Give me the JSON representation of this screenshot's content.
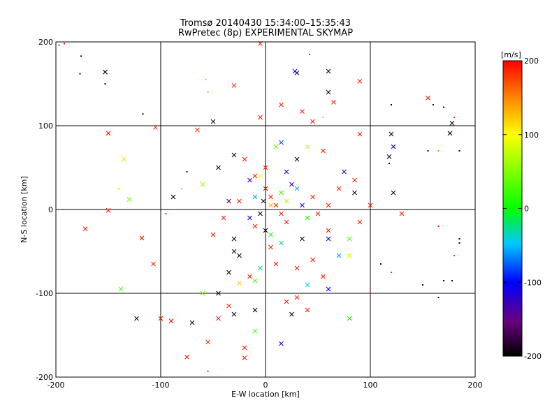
{
  "title_line1": "Tromsø 20140430 15:34:00–15:35:43",
  "title_line2": "RwPretec (8p) EXPERIMENTAL SKYMAP",
  "chart_data": {
    "type": "scatter",
    "xlabel": "E-W location [km]",
    "ylabel": "N-S location [km]",
    "xlim": [
      -200,
      200
    ],
    "ylim": [
      -200,
      200
    ],
    "xticks": [
      -200,
      -100,
      0,
      100,
      200
    ],
    "yticks": [
      -200,
      -100,
      0,
      100,
      200
    ],
    "grid": true,
    "colorbar": {
      "label": "[m/s]",
      "range": [
        -200,
        200
      ],
      "ticks": [
        200,
        100,
        0,
        -100,
        -200
      ],
      "colormap": "rainbow: black(-200) → purple → blue(-100) → cyan → green(0) → yellow(100) → red(200)"
    },
    "marker_styles": {
      "x": "cross (larger)",
      "dot": "small point"
    },
    "points": [
      [
        -197,
        196,
        190,
        "dot"
      ],
      [
        -192,
        198,
        200,
        "dot"
      ],
      [
        -176,
        183,
        -190,
        "dot"
      ],
      [
        -177,
        162,
        -190,
        "dot"
      ],
      [
        -153,
        164,
        -195,
        "x"
      ],
      [
        -153,
        150,
        -190,
        "dot"
      ],
      [
        -57,
        155,
        40,
        "dot"
      ],
      [
        -30,
        148,
        180,
        "x"
      ],
      [
        -5,
        198,
        190,
        "x"
      ],
      [
        -55,
        140,
        30,
        "dot"
      ],
      [
        -117,
        114,
        -190,
        "dot"
      ],
      [
        -150,
        91,
        190,
        "x"
      ],
      [
        -105,
        98,
        180,
        "x"
      ],
      [
        -135,
        60,
        110,
        "x"
      ],
      [
        -140,
        25,
        60,
        "dot"
      ],
      [
        -130,
        12,
        40,
        "x"
      ],
      [
        -150,
        -1,
        190,
        "x"
      ],
      [
        -172,
        -23,
        190,
        "x"
      ],
      [
        -138,
        -95,
        30,
        "x"
      ],
      [
        -118,
        -34,
        190,
        "x"
      ],
      [
        -107,
        -65,
        190,
        "x"
      ],
      [
        -123,
        -130,
        -190,
        "x"
      ],
      [
        -90,
        -133,
        200,
        "x"
      ],
      [
        -100,
        -130,
        190,
        "x"
      ],
      [
        -75,
        -176,
        190,
        "x"
      ],
      [
        -55,
        -158,
        180,
        "x"
      ],
      [
        -55,
        -193,
        190,
        "dot"
      ],
      [
        -20,
        -165,
        190,
        "x"
      ],
      [
        -20,
        -177,
        190,
        "x"
      ],
      [
        -75,
        45,
        -170,
        "dot"
      ],
      [
        -88,
        15,
        -195,
        "x"
      ],
      [
        -80,
        25,
        30,
        "dot"
      ],
      [
        -95,
        -5,
        190,
        "dot"
      ],
      [
        -65,
        95,
        180,
        "x"
      ],
      [
        -50,
        105,
        -190,
        "x"
      ],
      [
        -30,
        65,
        -190,
        "x"
      ],
      [
        -45,
        50,
        -190,
        "x"
      ],
      [
        -15,
        35,
        -130,
        "x"
      ],
      [
        -25,
        10,
        190,
        "x"
      ],
      [
        -40,
        -10,
        190,
        "x"
      ],
      [
        -30,
        -35,
        -190,
        "x"
      ],
      [
        -25,
        -55,
        -195,
        "x"
      ],
      [
        -35,
        -75,
        -190,
        "x"
      ],
      [
        -15,
        -80,
        190,
        "x"
      ],
      [
        -45,
        -100,
        -190,
        "x"
      ],
      [
        -30,
        -125,
        -190,
        "x"
      ],
      [
        -10,
        -120,
        -195,
        "x"
      ],
      [
        -10,
        -85,
        30,
        "x"
      ],
      [
        -60,
        -100,
        40,
        "x"
      ],
      [
        -35,
        -115,
        190,
        "x"
      ],
      [
        15,
        -160,
        -120,
        "x"
      ],
      [
        20,
        -110,
        190,
        "x"
      ],
      [
        30,
        -105,
        190,
        "x"
      ],
      [
        40,
        -120,
        190,
        "x"
      ],
      [
        25,
        -125,
        -190,
        "x"
      ],
      [
        40,
        -90,
        -40,
        "x"
      ],
      [
        45,
        -60,
        190,
        "x"
      ],
      [
        35,
        -35,
        -190,
        "x"
      ],
      [
        55,
        -80,
        190,
        "x"
      ],
      [
        60,
        -95,
        -100,
        "x"
      ],
      [
        80,
        -130,
        10,
        "x"
      ],
      [
        70,
        -55,
        -60,
        "x"
      ],
      [
        80,
        -35,
        30,
        "x"
      ],
      [
        90,
        -15,
        190,
        "x"
      ],
      [
        60,
        -25,
        190,
        "x"
      ],
      [
        50,
        -5,
        190,
        "x"
      ],
      [
        45,
        15,
        190,
        "x"
      ],
      [
        60,
        5,
        190,
        "x"
      ],
      [
        70,
        25,
        190,
        "x"
      ],
      [
        85,
        35,
        190,
        "x"
      ],
      [
        85,
        20,
        -190,
        "x"
      ],
      [
        100,
        5,
        190,
        "x"
      ],
      [
        75,
        45,
        -120,
        "x"
      ],
      [
        55,
        70,
        190,
        "x"
      ],
      [
        40,
        75,
        80,
        "x"
      ],
      [
        30,
        60,
        -190,
        "x"
      ],
      [
        20,
        45,
        -120,
        "x"
      ],
      [
        15,
        80,
        -80,
        "x"
      ],
      [
        10,
        75,
        40,
        "x"
      ],
      [
        0,
        50,
        190,
        "x"
      ],
      [
        -10,
        40,
        190,
        "x"
      ],
      [
        0,
        25,
        200,
        "x"
      ],
      [
        5,
        15,
        190,
        "x"
      ],
      [
        10,
        5,
        190,
        "x"
      ],
      [
        15,
        -5,
        190,
        "x"
      ],
      [
        20,
        -15,
        190,
        "x"
      ],
      [
        -5,
        -5,
        -190,
        "x"
      ],
      [
        -10,
        -20,
        190,
        "x"
      ],
      [
        0,
        -25,
        -190,
        "x"
      ],
      [
        5,
        -45,
        190,
        "x"
      ],
      [
        10,
        -65,
        190,
        "x"
      ],
      [
        30,
        -70,
        190,
        "x"
      ],
      [
        -5,
        110,
        190,
        "x"
      ],
      [
        15,
        125,
        190,
        "x"
      ],
      [
        35,
        117,
        190,
        "x"
      ],
      [
        45,
        105,
        190,
        "x"
      ],
      [
        55,
        110,
        40,
        "dot"
      ],
      [
        60,
        140,
        -190,
        "x"
      ],
      [
        65,
        128,
        190,
        "x"
      ],
      [
        60,
        165,
        -190,
        "x"
      ],
      [
        30,
        163,
        -190,
        "x"
      ],
      [
        28,
        165,
        -110,
        "x"
      ],
      [
        90,
        153,
        190,
        "x"
      ],
      [
        42,
        185,
        190,
        "dot"
      ],
      [
        90,
        90,
        190,
        "x"
      ],
      [
        120,
        125,
        -200,
        "dot"
      ],
      [
        120,
        90,
        -190,
        "x"
      ],
      [
        122,
        75,
        -100,
        "x"
      ],
      [
        118,
        63,
        -190,
        "x"
      ],
      [
        118,
        55,
        -190,
        "dot"
      ],
      [
        122,
        20,
        -190,
        "x"
      ],
      [
        130,
        -5,
        190,
        "x"
      ],
      [
        155,
        133,
        190,
        "x"
      ],
      [
        160,
        125,
        -190,
        "dot"
      ],
      [
        170,
        122,
        -190,
        "dot"
      ],
      [
        180,
        110,
        190,
        "dot"
      ],
      [
        178,
        103,
        -190,
        "x"
      ],
      [
        176,
        91,
        -190,
        "x"
      ],
      [
        165,
        70,
        20,
        "dot"
      ],
      [
        185,
        70,
        -190,
        "dot"
      ],
      [
        155,
        70,
        -195,
        "dot"
      ],
      [
        165,
        -20,
        190,
        "dot"
      ],
      [
        185,
        -35,
        -190,
        "dot"
      ],
      [
        185,
        -40,
        -190,
        "dot"
      ],
      [
        180,
        -55,
        190,
        "dot"
      ],
      [
        170,
        -85,
        -190,
        "dot"
      ],
      [
        178,
        -85,
        -190,
        "dot"
      ],
      [
        165,
        -105,
        -200,
        "dot"
      ],
      [
        150,
        -90,
        -190,
        "dot"
      ],
      [
        110,
        -65,
        -190,
        "dot"
      ],
      [
        120,
        -75,
        190,
        "dot"
      ],
      [
        100,
        -100,
        190,
        "dot"
      ],
      [
        5,
        -30,
        10,
        "x"
      ],
      [
        -2,
        10,
        -190,
        "x"
      ],
      [
        -10,
        15,
        -60,
        "x"
      ],
      [
        15,
        20,
        20,
        "x"
      ],
      [
        25,
        30,
        -120,
        "x"
      ],
      [
        30,
        25,
        -60,
        "x"
      ],
      [
        35,
        5,
        -110,
        "x"
      ],
      [
        20,
        10,
        70,
        "x"
      ],
      [
        5,
        5,
        130,
        "x"
      ],
      [
        -5,
        40,
        100,
        "x"
      ],
      [
        40,
        -10,
        10,
        "x"
      ],
      [
        15,
        -40,
        -30,
        "x"
      ],
      [
        -5,
        -70,
        -20,
        "x"
      ],
      [
        -15,
        -10,
        -110,
        "x"
      ],
      [
        -50,
        -30,
        190,
        "x"
      ],
      [
        -35,
        10,
        -170,
        "x"
      ],
      [
        -60,
        30,
        60,
        "x"
      ],
      [
        -20,
        60,
        190,
        "x"
      ],
      [
        -30,
        -50,
        -180,
        "x"
      ],
      [
        -45,
        -130,
        190,
        "x"
      ],
      [
        -70,
        -135,
        -190,
        "x"
      ],
      [
        60,
        -35,
        -100,
        "x"
      ],
      [
        80,
        -55,
        80,
        "x"
      ],
      [
        -10,
        -145,
        30,
        "x"
      ],
      [
        -25,
        -88,
        120,
        "x"
      ]
    ]
  }
}
